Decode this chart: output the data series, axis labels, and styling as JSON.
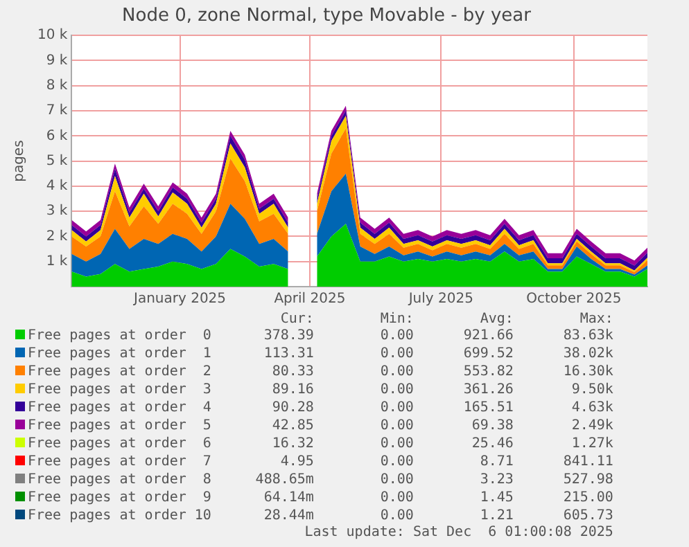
{
  "chart_data": {
    "type": "area",
    "title": "Node 0, zone Normal, type Movable - by year",
    "ylabel": "pages",
    "stacked": true,
    "grid": true,
    "legend": "bottom",
    "x": [
      "2024-11-01",
      "2024-11-11",
      "2024-11-21",
      "2024-12-01",
      "2024-12-11",
      "2024-12-21",
      "2024-12-31",
      "2025-01-10",
      "2025-01-20",
      "2025-01-30",
      "2025-02-09",
      "2025-02-19",
      "2025-03-01",
      "2025-03-11",
      "2025-03-21",
      "2025-03-31",
      "2025-04-10",
      "2025-04-20",
      "2025-04-30",
      "2025-05-10",
      "2025-05-20",
      "2025-05-30",
      "2025-06-09",
      "2025-06-19",
      "2025-06-29",
      "2025-07-09",
      "2025-07-19",
      "2025-07-29",
      "2025-08-08",
      "2025-08-18",
      "2025-08-28",
      "2025-09-07",
      "2025-09-17",
      "2025-09-27",
      "2025-10-07",
      "2025-10-17",
      "2025-10-27",
      "2025-11-06",
      "2025-11-16",
      "2025-11-26",
      "2025-12-05"
    ],
    "xlim": [
      "2024-11-01",
      "2025-12-05"
    ],
    "xticks": [
      {
        "value": "2025-01-15",
        "label": "January 2025"
      },
      {
        "value": "2025-04-15",
        "label": "April 2025"
      },
      {
        "value": "2025-07-15",
        "label": "July 2025"
      },
      {
        "value": "2025-10-15",
        "label": "October 2025"
      }
    ],
    "ylim": [
      0,
      10000
    ],
    "yticks": [
      {
        "value": 1000,
        "label": "1 k"
      },
      {
        "value": 2000,
        "label": "2 k"
      },
      {
        "value": 3000,
        "label": "3 k"
      },
      {
        "value": 4000,
        "label": "4 k"
      },
      {
        "value": 5000,
        "label": "5 k"
      },
      {
        "value": 6000,
        "label": "6 k"
      },
      {
        "value": 7000,
        "label": "7 k"
      },
      {
        "value": 8000,
        "label": "8 k"
      },
      {
        "value": 9000,
        "label": "9 k"
      },
      {
        "value": 10000,
        "label": "10 k"
      }
    ],
    "series": [
      {
        "name": "Free pages at order  0",
        "color": "#00cc00",
        "values": [
          600,
          400,
          500,
          900,
          600,
          700,
          800,
          1000,
          900,
          700,
          900,
          1500,
          1200,
          800,
          900,
          700,
          null,
          1200,
          2000,
          2500,
          1000,
          1000,
          1200,
          1000,
          1100,
          1000,
          1100,
          1000,
          1100,
          1000,
          1400,
          1000,
          1100,
          600,
          600,
          1200,
          900,
          600,
          600,
          400,
          700
        ]
      },
      {
        "name": "Free pages at order  1",
        "color": "#0066b3",
        "values": [
          700,
          600,
          800,
          1400,
          900,
          1200,
          900,
          1100,
          1000,
          700,
          1100,
          1800,
          1500,
          900,
          1000,
          700,
          null,
          900,
          1800,
          2000,
          600,
          300,
          400,
          250,
          300,
          200,
          300,
          250,
          300,
          250,
          300,
          250,
          300,
          100,
          100,
          400,
          200,
          100,
          100,
          80,
          150
        ]
      },
      {
        "name": "Free pages at order  2",
        "color": "#ff8000",
        "values": [
          700,
          600,
          700,
          1500,
          900,
          1300,
          800,
          1200,
          1000,
          700,
          1000,
          1800,
          1500,
          900,
          1000,
          700,
          null,
          900,
          1500,
          1800,
          500,
          400,
          500,
          300,
          300,
          250,
          300,
          300,
          300,
          250,
          400,
          250,
          300,
          150,
          150,
          200,
          200,
          150,
          150,
          100,
          200
        ]
      },
      {
        "name": "Free pages at order  3",
        "color": "#ffcc00",
        "values": [
          250,
          200,
          250,
          600,
          350,
          500,
          300,
          450,
          400,
          250,
          300,
          600,
          550,
          300,
          400,
          250,
          null,
          300,
          500,
          500,
          250,
          200,
          250,
          150,
          150,
          150,
          150,
          150,
          150,
          150,
          200,
          150,
          150,
          80,
          80,
          100,
          100,
          80,
          80,
          60,
          100
        ]
      },
      {
        "name": "Free pages at order  4",
        "color": "#330099",
        "values": [
          200,
          200,
          200,
          300,
          200,
          200,
          200,
          200,
          200,
          200,
          200,
          300,
          300,
          200,
          200,
          200,
          null,
          200,
          200,
          200,
          200,
          200,
          200,
          200,
          200,
          200,
          200,
          200,
          200,
          200,
          200,
          200,
          200,
          200,
          200,
          200,
          200,
          200,
          200,
          200,
          200
        ]
      },
      {
        "name": "Free pages at order  5",
        "color": "#990099",
        "values": [
          200,
          200,
          200,
          200,
          200,
          200,
          200,
          200,
          200,
          200,
          200,
          200,
          200,
          200,
          200,
          200,
          null,
          200,
          200,
          200,
          200,
          200,
          200,
          200,
          200,
          200,
          200,
          200,
          200,
          200,
          200,
          200,
          200,
          200,
          200,
          200,
          200,
          200,
          200,
          200,
          200
        ]
      },
      {
        "name": "Free pages at order  6",
        "color": "#ccff00",
        "values": [
          null,
          null,
          null,
          null,
          null,
          null,
          null,
          null,
          null,
          null,
          null,
          null,
          null,
          null,
          null,
          null,
          null,
          null,
          null,
          null,
          null,
          null,
          null,
          null,
          null,
          null,
          null,
          null,
          null,
          null,
          null,
          null,
          null,
          null,
          null,
          null,
          null,
          null,
          null,
          null,
          null
        ]
      },
      {
        "name": "Free pages at order  7",
        "color": "#ff0000",
        "values": [
          null,
          null,
          null,
          null,
          null,
          null,
          null,
          null,
          null,
          null,
          null,
          null,
          null,
          null,
          null,
          null,
          null,
          null,
          null,
          null,
          null,
          null,
          null,
          null,
          null,
          null,
          null,
          null,
          null,
          null,
          null,
          null,
          null,
          null,
          null,
          null,
          null,
          null,
          null,
          null,
          null
        ]
      },
      {
        "name": "Free pages at order  8",
        "color": "#808080",
        "values": [
          null,
          null,
          null,
          null,
          null,
          null,
          null,
          null,
          null,
          null,
          null,
          null,
          null,
          null,
          null,
          null,
          null,
          null,
          null,
          null,
          null,
          null,
          null,
          null,
          null,
          null,
          null,
          null,
          null,
          null,
          null,
          null,
          null,
          null,
          null,
          null,
          null,
          null,
          null,
          null,
          null
        ]
      },
      {
        "name": "Free pages at order  9",
        "color": "#008f00",
        "values": [
          null,
          null,
          null,
          null,
          null,
          null,
          null,
          null,
          null,
          null,
          null,
          null,
          null,
          null,
          null,
          null,
          null,
          null,
          null,
          null,
          null,
          null,
          null,
          null,
          null,
          null,
          null,
          null,
          null,
          null,
          null,
          null,
          null,
          null,
          null,
          null,
          null,
          null,
          null,
          null,
          null
        ]
      },
      {
        "name": "Free pages at order 10",
        "color": "#00487d",
        "values": [
          null,
          null,
          null,
          null,
          null,
          null,
          null,
          null,
          null,
          null,
          null,
          null,
          null,
          null,
          null,
          null,
          null,
          null,
          null,
          null,
          null,
          null,
          null,
          null,
          null,
          null,
          null,
          null,
          null,
          null,
          null,
          null,
          null,
          null,
          null,
          null,
          null,
          null,
          null,
          null,
          null
        ]
      }
    ],
    "annotations": [
      "Cur:",
      "Min:",
      "Avg:",
      "Max:",
      "378.39",
      "0.00",
      "921.66",
      "83.63k",
      "113.31",
      "0.00",
      "699.52",
      "38.02k",
      "80.33",
      "0.00",
      "553.82",
      "16.30k",
      "89.16",
      "0.00",
      "361.26",
      "9.50k",
      "90.28",
      "0.00",
      "165.51",
      "4.63k",
      "42.85",
      "0.00",
      "69.38",
      "2.49k",
      "16.32",
      "0.00",
      "25.46",
      "1.27k",
      "4.95",
      "0.00",
      "8.71",
      "841.11",
      "488.65m",
      "0.00",
      "3.23",
      "527.98",
      "64.14m",
      "0.00",
      "1.45",
      "215.00",
      "28.44m",
      "0.00",
      "1.21",
      "605.73",
      "Last update: Sat Dec  6 01:00:08 2025"
    ]
  }
}
